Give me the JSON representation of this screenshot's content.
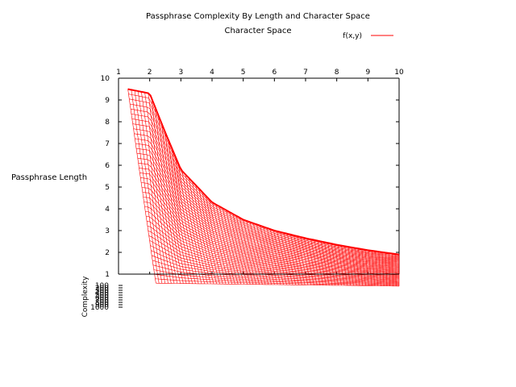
{
  "chart_data": {
    "type": "surface-3d-mesh",
    "title": "Passphrase Complexity By Length and Character Space",
    "xlabel": "Character Space",
    "ylabel": "Passphrase Length",
    "zlabel": "Complexity",
    "legend": {
      "entries": [
        "f(x,y)"
      ],
      "position": "top-right"
    },
    "colors": {
      "surface": "#ff0000",
      "axis": "#000000",
      "background": "#ffffff"
    },
    "xlim": [
      1,
      10
    ],
    "ylim": [
      1,
      10
    ],
    "x_ticks": [
      "1",
      "2",
      "3",
      "4",
      "5",
      "6",
      "7",
      "8",
      "9",
      "10"
    ],
    "y_ticks": [
      "1",
      "2",
      "3",
      "4",
      "5",
      "6",
      "7",
      "8",
      "9",
      "10"
    ],
    "z_ticks": [
      "100",
      "200",
      "300",
      "400",
      "500",
      "600",
      "700",
      "800",
      "900",
      "1000"
    ],
    "z_axis_note": "z tick labels are drawn overlapping in a compressed range",
    "surface_edge_length": [
      {
        "x": 1.3,
        "y": 9.5
      },
      {
        "x": 2.0,
        "y": 9.3
      },
      {
        "x": 2.5,
        "y": 7.5
      },
      {
        "x": 3.0,
        "y": 5.8
      },
      {
        "x": 4.0,
        "y": 4.3
      },
      {
        "x": 5.0,
        "y": 3.5
      },
      {
        "x": 6.0,
        "y": 3.0
      },
      {
        "x": 7.0,
        "y": 2.65
      },
      {
        "x": 8.0,
        "y": 2.35
      },
      {
        "x": 9.0,
        "y": 2.1
      },
      {
        "x": 10.0,
        "y": 1.9
      }
    ],
    "grid": false
  }
}
